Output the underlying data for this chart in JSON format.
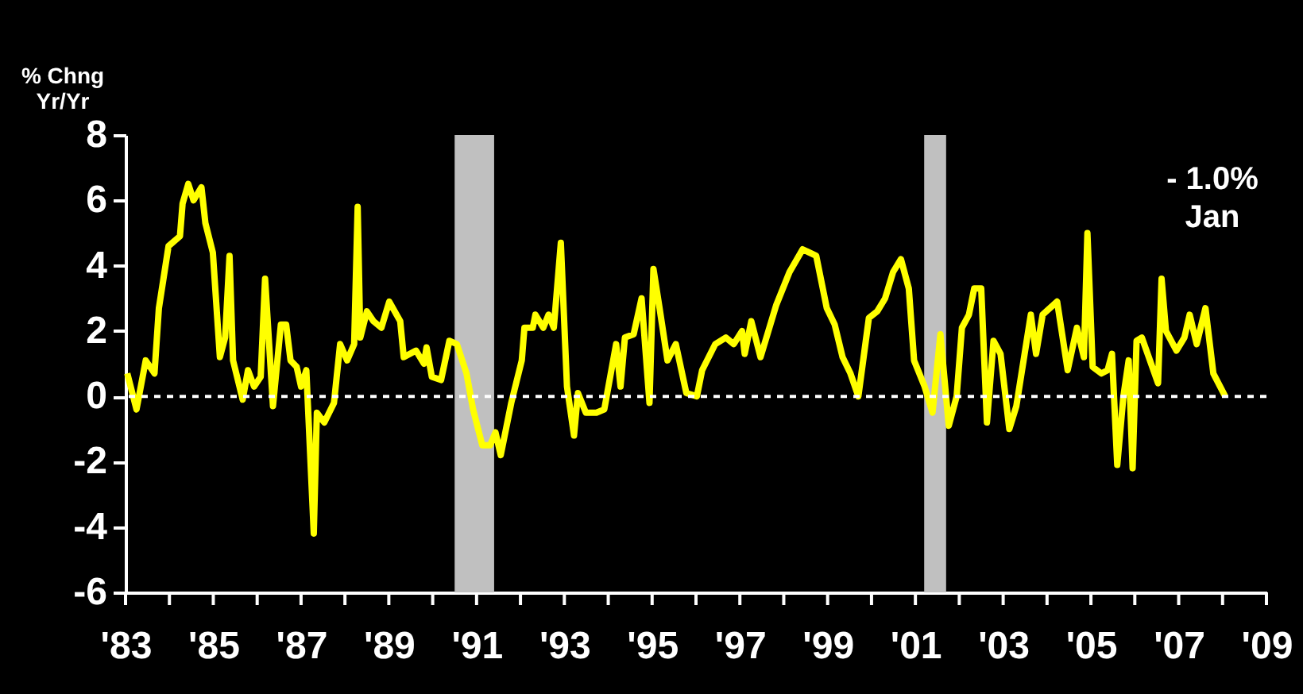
{
  "chart_data": {
    "type": "line",
    "ylabel": "% Chng\nYr/Yr",
    "annotations": [
      "- 1.0%\nJan"
    ],
    "grid": false,
    "marker": "none",
    "line_style": "solid",
    "xlim": [
      1983,
      2009
    ],
    "ylim": [
      -6,
      8
    ],
    "yticks": [
      -6,
      -4,
      -2,
      0,
      2,
      4,
      6,
      8
    ],
    "xticks": [
      {
        "value": 1983,
        "label": "'83"
      },
      {
        "value": 1984,
        "label": null
      },
      {
        "value": 1985,
        "label": "'85"
      },
      {
        "value": 1986,
        "label": null
      },
      {
        "value": 1987,
        "label": "'87"
      },
      {
        "value": 1988,
        "label": null
      },
      {
        "value": 1989,
        "label": "'89"
      },
      {
        "value": 1990,
        "label": null
      },
      {
        "value": 1991,
        "label": "'91"
      },
      {
        "value": 1992,
        "label": null
      },
      {
        "value": 1993,
        "label": "'93"
      },
      {
        "value": 1994,
        "label": null
      },
      {
        "value": 1995,
        "label": "'95"
      },
      {
        "value": 1996,
        "label": null
      },
      {
        "value": 1997,
        "label": "'97"
      },
      {
        "value": 1998,
        "label": null
      },
      {
        "value": 1999,
        "label": "'99"
      },
      {
        "value": 2000,
        "label": null
      },
      {
        "value": 2001,
        "label": "'01"
      },
      {
        "value": 2002,
        "label": null
      },
      {
        "value": 2003,
        "label": "'03"
      },
      {
        "value": 2004,
        "label": null
      },
      {
        "value": 2005,
        "label": "'05"
      },
      {
        "value": 2006,
        "label": null
      },
      {
        "value": 2007,
        "label": "'07"
      },
      {
        "value": 2008,
        "label": null
      },
      {
        "value": 2009,
        "label": "'09"
      }
    ],
    "ref_lines": [
      {
        "axis": "y",
        "value": 0,
        "color": "#ffffff",
        "line_style": "dashed"
      }
    ],
    "bands": [
      {
        "axis": "x",
        "from": 1990.5,
        "to": 1991.4,
        "color": "#c0c0c0"
      },
      {
        "axis": "x",
        "from": 2001.2,
        "to": 2001.7,
        "color": "#c0c0c0"
      }
    ],
    "series": [
      {
        "color": "#ffff00",
        "x": [
          1983.04,
          1983.25,
          1983.46,
          1983.66,
          1983.76,
          1983.98,
          1984.24,
          1984.3,
          1984.43,
          1984.55,
          1984.73,
          1984.82,
          1984.99,
          1985.15,
          1985.27,
          1985.37,
          1985.45,
          1985.67,
          1985.79,
          1985.93,
          1986.08,
          1986.18,
          1986.36,
          1986.54,
          1986.66,
          1986.76,
          1986.9,
          1987.0,
          1987.12,
          1987.29,
          1987.36,
          1987.53,
          1987.75,
          1987.89,
          1988.05,
          1988.21,
          1988.29,
          1988.35,
          1988.5,
          1988.65,
          1988.83,
          1989.01,
          1989.26,
          1989.34,
          1989.62,
          1989.8,
          1989.86,
          1989.98,
          1990.19,
          1990.38,
          1990.55,
          1990.77,
          1990.92,
          1991.13,
          1991.31,
          1991.43,
          1991.55,
          1991.79,
          1992.03,
          1992.09,
          1992.28,
          1992.34,
          1992.52,
          1992.64,
          1992.76,
          1992.92,
          1993.06,
          1993.22,
          1993.31,
          1993.49,
          1993.73,
          1993.91,
          1994.18,
          1994.28,
          1994.38,
          1994.58,
          1994.76,
          1994.94,
          1995.03,
          1995.17,
          1995.35,
          1995.54,
          1995.78,
          1996.02,
          1996.14,
          1996.44,
          1996.68,
          1996.86,
          1997.05,
          1997.11,
          1997.26,
          1997.47,
          1997.65,
          1997.83,
          1998.13,
          1998.43,
          1998.74,
          1998.98,
          1999.16,
          1999.34,
          1999.52,
          1999.7,
          1999.94,
          2000.13,
          2000.31,
          2000.49,
          2000.67,
          2000.85,
          2000.97,
          2001.21,
          2001.39,
          2001.57,
          2001.76,
          2001.94,
          2002.06,
          2002.22,
          2002.34,
          2002.5,
          2002.63,
          2002.78,
          2002.94,
          2003.14,
          2003.3,
          2003.63,
          2003.75,
          2003.9,
          2004.23,
          2004.47,
          2004.68,
          2004.84,
          2004.92,
          2005.04,
          2005.24,
          2005.38,
          2005.48,
          2005.6,
          2005.74,
          2005.86,
          2005.95,
          2006.04,
          2006.16,
          2006.53,
          2006.61,
          2006.71,
          2006.95,
          2007.13,
          2007.25,
          2007.41,
          2007.61,
          2007.79,
          2008.06
        ],
        "values": [
          0.7,
          -0.4,
          1.1,
          0.7,
          2.7,
          4.6,
          4.9,
          5.9,
          6.5,
          6.0,
          6.4,
          5.3,
          4.4,
          1.2,
          1.8,
          4.3,
          1.1,
          -0.1,
          0.8,
          0.3,
          0.6,
          3.6,
          -0.3,
          2.2,
          2.2,
          1.1,
          0.9,
          0.3,
          0.8,
          -4.2,
          -0.5,
          -0.8,
          -0.2,
          1.6,
          1.1,
          1.6,
          5.8,
          1.8,
          2.6,
          2.3,
          2.1,
          2.9,
          2.3,
          1.2,
          1.4,
          1.0,
          1.5,
          0.6,
          0.5,
          1.7,
          1.6,
          0.7,
          -0.4,
          -1.5,
          -1.5,
          -1.1,
          -1.8,
          -0.2,
          1.1,
          2.1,
          2.1,
          2.5,
          2.1,
          2.5,
          2.1,
          4.7,
          0.3,
          -1.2,
          0.1,
          -0.5,
          -0.5,
          -0.4,
          1.6,
          0.3,
          1.8,
          1.9,
          3.0,
          -0.2,
          3.9,
          2.7,
          1.1,
          1.6,
          0.1,
          0.0,
          0.8,
          1.6,
          1.8,
          1.6,
          2.0,
          1.3,
          2.3,
          1.2,
          2.0,
          2.8,
          3.8,
          4.5,
          4.3,
          2.7,
          2.2,
          1.2,
          0.7,
          0.0,
          2.4,
          2.6,
          3.0,
          3.8,
          4.2,
          3.3,
          1.1,
          0.3,
          -0.5,
          1.9,
          -0.9,
          0.0,
          2.1,
          2.5,
          3.3,
          3.3,
          -0.8,
          1.7,
          1.3,
          -1.0,
          -0.3,
          2.5,
          1.3,
          2.5,
          2.9,
          0.8,
          2.1,
          1.2,
          5.0,
          0.9,
          0.7,
          0.8,
          1.3,
          -2.1,
          0.0,
          1.1,
          -2.2,
          1.7,
          1.8,
          0.4,
          3.6,
          2.0,
          1.4,
          1.8,
          2.5,
          1.6,
          2.7,
          0.7,
          0.0
        ]
      }
    ]
  }
}
